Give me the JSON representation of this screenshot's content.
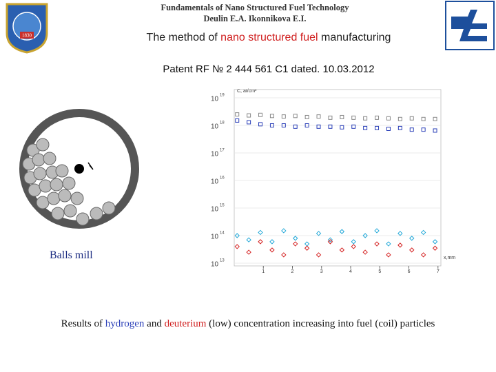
{
  "header": {
    "line1": "Fundamentals of Nano Structured Fuel Technology",
    "line2": "Deulin E.A.   Ikonnikova E.I."
  },
  "logo_left": {
    "year": "1830"
  },
  "title": {
    "part1": "The method of ",
    "part2": "nano structured fuel",
    "part3": " manufacturing"
  },
  "patent": "Patent RF  № 2 444 561 C1 dated. 10.03.2012",
  "mill_label": "Balls mill",
  "caption": {
    "part1": "Results of ",
    "part2": "hydrogen",
    "part3": " and ",
    "part4": "deuterium",
    "part5": " (low) concentration increasing  into fuel  (coil) particles"
  },
  "chart_data": {
    "type": "scatter",
    "y_label": "C, at/cm³",
    "x_label": "x,mm",
    "log_y": true,
    "grid": true,
    "xlim": [
      0,
      7.1
    ],
    "ylim": [
      10000000000000.0,
      1e+19
    ],
    "xticks": [
      1,
      2,
      3,
      4,
      5,
      6,
      7
    ],
    "yticks": [
      {
        "value": 10000000000000.0,
        "label": "10",
        "sup": "13"
      },
      {
        "value": 100000000000000.0,
        "label": "10",
        "sup": "14"
      },
      {
        "value": 1000000000000000.0,
        "label": "10",
        "sup": "15"
      },
      {
        "value": 1e+16,
        "label": "10",
        "sup": "16"
      },
      {
        "value": 1e+17,
        "label": "10",
        "sup": "17"
      },
      {
        "value": 1e+18,
        "label": "10",
        "sup": "18"
      },
      {
        "value": 1e+19,
        "label": "10",
        "sup": "19"
      }
    ],
    "x": [
      0.1,
      0.5,
      0.9,
      1.3,
      1.7,
      2.1,
      2.5,
      2.9,
      3.3,
      3.7,
      4.1,
      4.5,
      4.9,
      5.3,
      5.7,
      6.1,
      6.5,
      6.9
    ],
    "series": [
      {
        "color": "#888888",
        "marker": "square",
        "values": [
          2.5e+18,
          2.3e+18,
          2.4e+18,
          2.2e+18,
          2.1e+18,
          2.2e+18,
          2e+18,
          2.1e+18,
          1.9e+18,
          2e+18,
          1.9e+18,
          1.8e+18,
          1.9e+18,
          1.8e+18,
          1.7e+18,
          1.8e+18,
          1.7e+18,
          1.7e+18
        ]
      },
      {
        "color": "#2a3fb8",
        "marker": "square",
        "values": [
          1.5e+18,
          1.3e+18,
          1.1e+18,
          1e+18,
          1e+18,
          9e+17,
          1e+18,
          9e+17,
          9e+17,
          8.5e+17,
          9e+17,
          8e+17,
          8e+17,
          7.5e+17,
          8e+17,
          7e+17,
          7e+17,
          6.5e+17
        ]
      },
      {
        "color": "#22a8d8",
        "marker": "diamond",
        "values": [
          100000000000000.0,
          70000000000000.0,
          130000000000000.0,
          60000000000000.0,
          150000000000000.0,
          80000000000000.0,
          50000000000000.0,
          120000000000000.0,
          70000000000000.0,
          140000000000000.0,
          60000000000000.0,
          100000000000000.0,
          150000000000000.0,
          50000000000000.0,
          120000000000000.0,
          80000000000000.0,
          130000000000000.0,
          60000000000000.0
        ]
      },
      {
        "color": "#d42020",
        "marker": "diamond",
        "values": [
          40000000000000.0,
          25000000000000.0,
          60000000000000.0,
          30000000000000.0,
          20000000000000.0,
          50000000000000.0,
          35000000000000.0,
          20000000000000.0,
          60000000000000.0,
          30000000000000.0,
          40000000000000.0,
          25000000000000.0,
          50000000000000.0,
          20000000000000.0,
          45000000000000.0,
          30000000000000.0,
          20000000000000.0,
          35000000000000.0
        ]
      }
    ]
  }
}
